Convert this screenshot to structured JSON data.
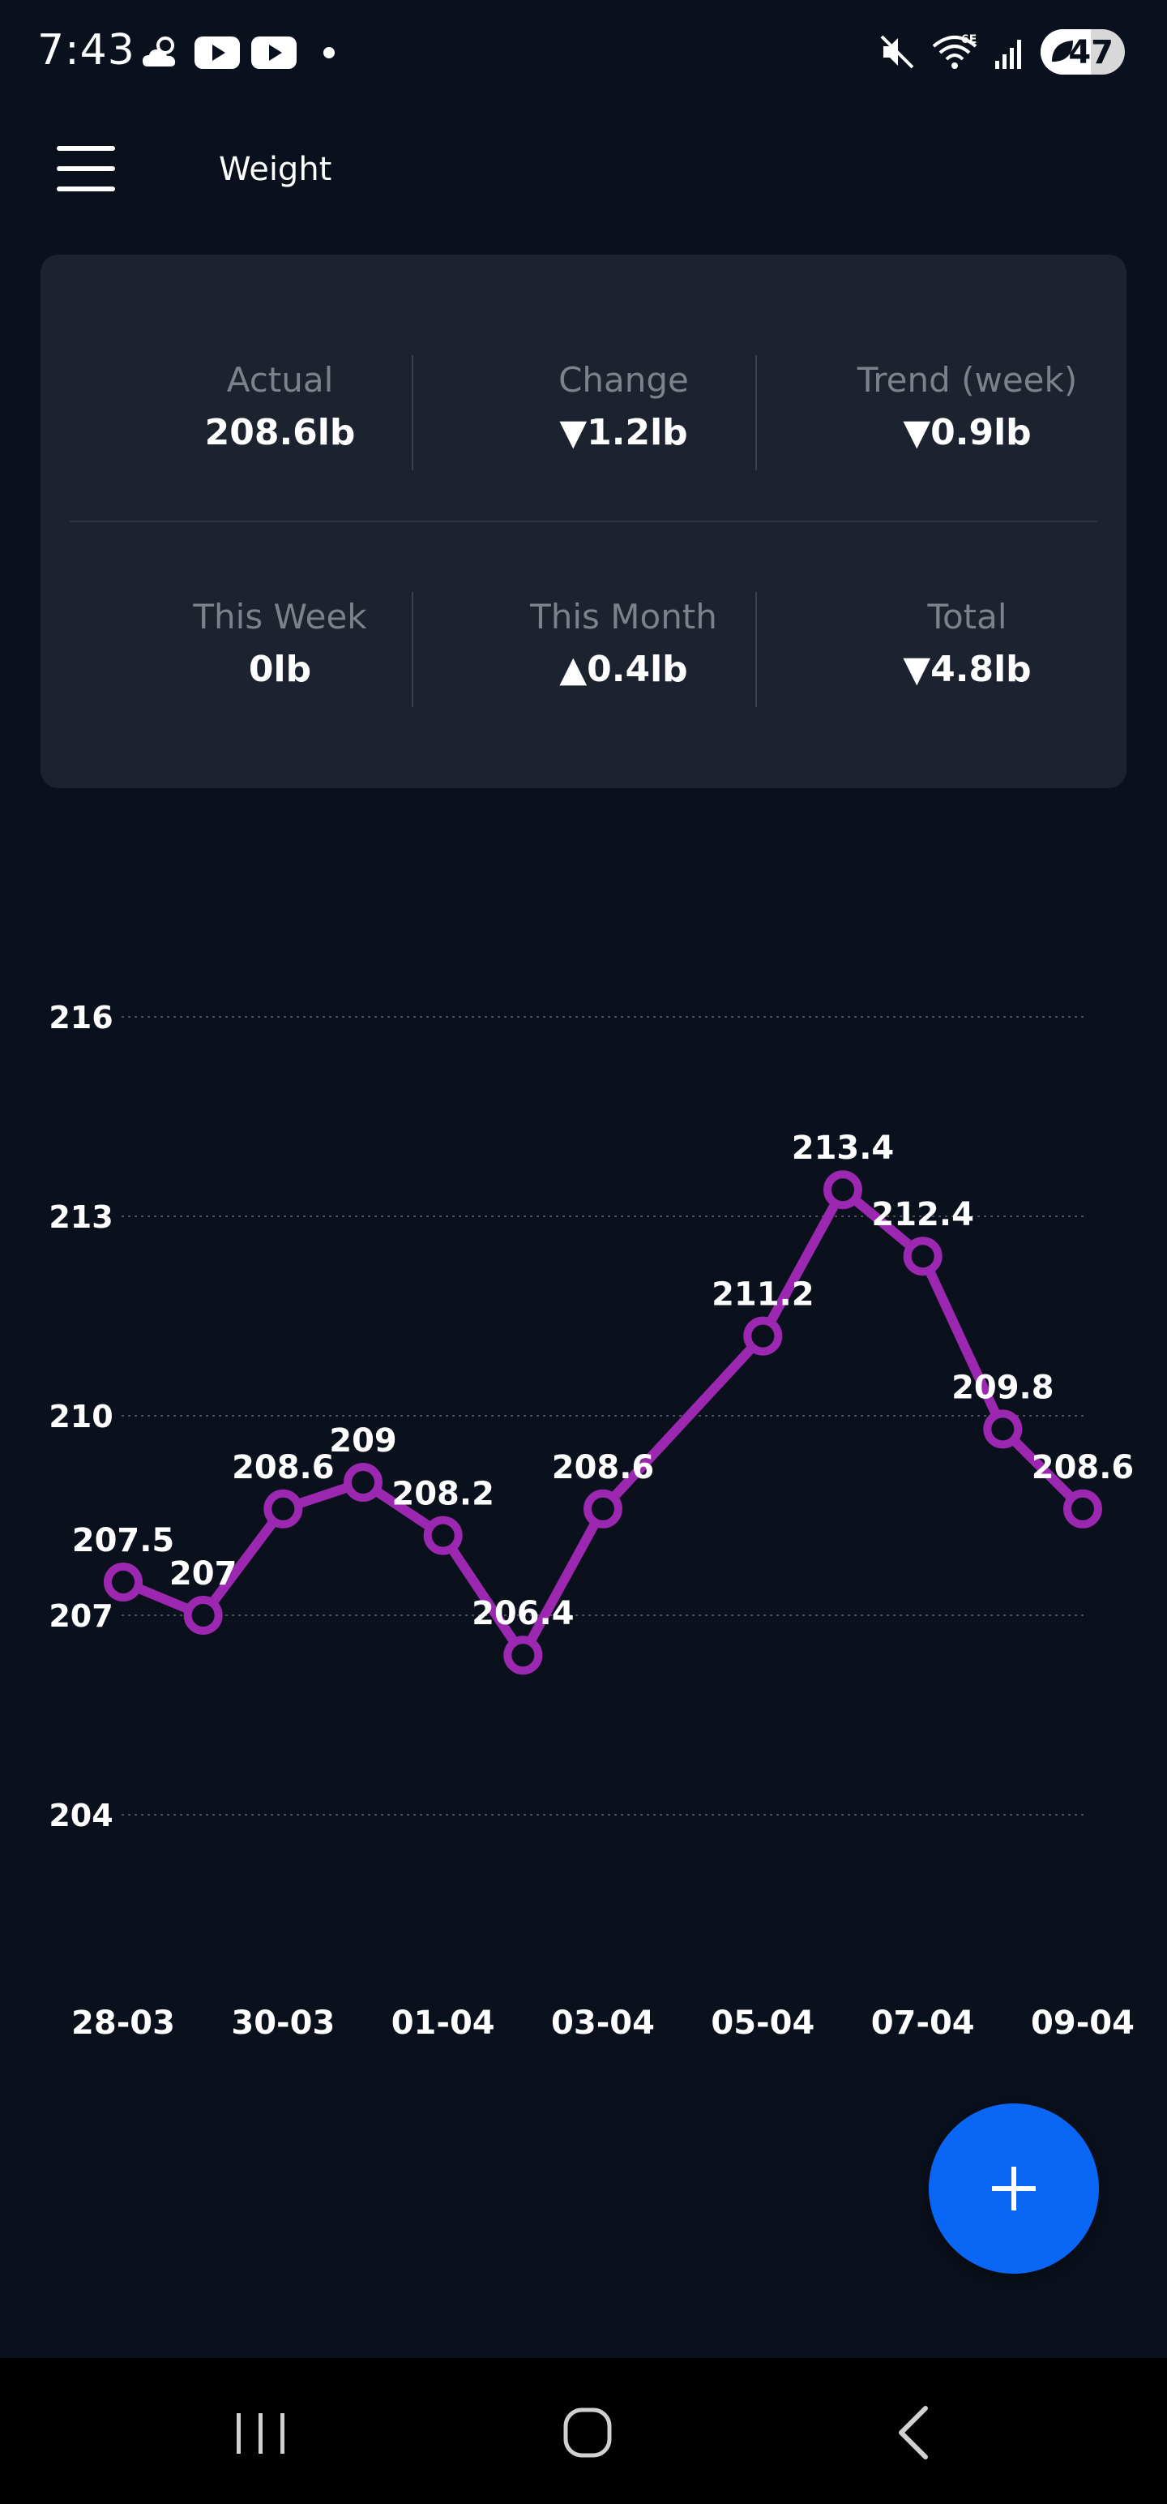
{
  "status_bar": {
    "time": "7:43",
    "battery": "47"
  },
  "app_bar": {
    "title": "Weight"
  },
  "stats": [
    {
      "label": "Actual",
      "value": "208.6lb"
    },
    {
      "label": "Change",
      "value": "▼1.2lb"
    },
    {
      "label": "Trend (week)",
      "value": "▼0.9lb"
    },
    {
      "label": "This Week",
      "value": "0lb"
    },
    {
      "label": "This Month",
      "value": "▲0.4lb"
    },
    {
      "label": "Total",
      "value": "▼4.8lb"
    }
  ],
  "chart_data": {
    "type": "line",
    "y_ticks": [
      216,
      213,
      210,
      207,
      204
    ],
    "ylim": [
      204,
      216
    ],
    "x_tick_labels": [
      "28-03",
      "30-03",
      "01-04",
      "03-04",
      "05-04",
      "07-04",
      "09-04"
    ],
    "grid": true,
    "line_color": "#9c27b0",
    "series": [
      {
        "values": [
          207.5,
          207,
          208.6,
          209,
          208.2,
          206.4,
          208.6,
          null,
          211.2,
          213.4,
          212.4,
          209.8,
          208.6
        ],
        "labels": [
          "207.5",
          "207",
          "208.6",
          "209",
          "208.2",
          "206.4",
          "208.6",
          null,
          "211.2",
          "213.4",
          "212.4",
          "209.8",
          "208.6"
        ]
      }
    ]
  },
  "colors": {
    "background": "#0a101c",
    "card": "#1c222e",
    "accent": "#0a66f5"
  }
}
